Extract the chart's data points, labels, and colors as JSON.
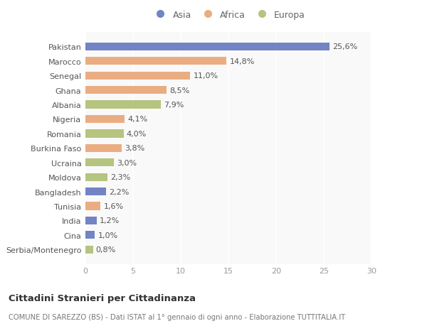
{
  "countries": [
    "Pakistan",
    "Marocco",
    "Senegal",
    "Ghana",
    "Albania",
    "Nigeria",
    "Romania",
    "Burkina Faso",
    "Ucraina",
    "Moldova",
    "Bangladesh",
    "Tunisia",
    "India",
    "Cina",
    "Serbia/Montenegro"
  ],
  "values": [
    25.6,
    14.8,
    11.0,
    8.5,
    7.9,
    4.1,
    4.0,
    3.8,
    3.0,
    2.3,
    2.2,
    1.6,
    1.2,
    1.0,
    0.8
  ],
  "labels": [
    "25,6%",
    "14,8%",
    "11,0%",
    "8,5%",
    "7,9%",
    "4,1%",
    "4,0%",
    "3,8%",
    "3,0%",
    "2,3%",
    "2,2%",
    "1,6%",
    "1,2%",
    "1,0%",
    "0,8%"
  ],
  "continent": [
    "Asia",
    "Africa",
    "Africa",
    "Africa",
    "Europa",
    "Africa",
    "Europa",
    "Africa",
    "Europa",
    "Europa",
    "Asia",
    "Africa",
    "Asia",
    "Asia",
    "Europa"
  ],
  "colors": {
    "Asia": "#7284c4",
    "Africa": "#eaad82",
    "Europa": "#b5c47f"
  },
  "legend_labels": [
    "Asia",
    "Africa",
    "Europa"
  ],
  "xlim": [
    0,
    30
  ],
  "xticks": [
    0,
    5,
    10,
    15,
    20,
    25,
    30
  ],
  "title_main": "Cittadini Stranieri per Cittadinanza",
  "title_sub": "COMUNE DI SAREZZO (BS) - Dati ISTAT al 1° gennaio di ogni anno - Elaborazione TUTTITALIA.IT",
  "bg_color": "#ffffff",
  "plot_bg_color": "#f9f9f9",
  "bar_height": 0.55,
  "label_fontsize": 8,
  "tick_fontsize": 8,
  "legend_fontsize": 9,
  "title_fontsize": 9.5,
  "subtitle_fontsize": 7.2
}
